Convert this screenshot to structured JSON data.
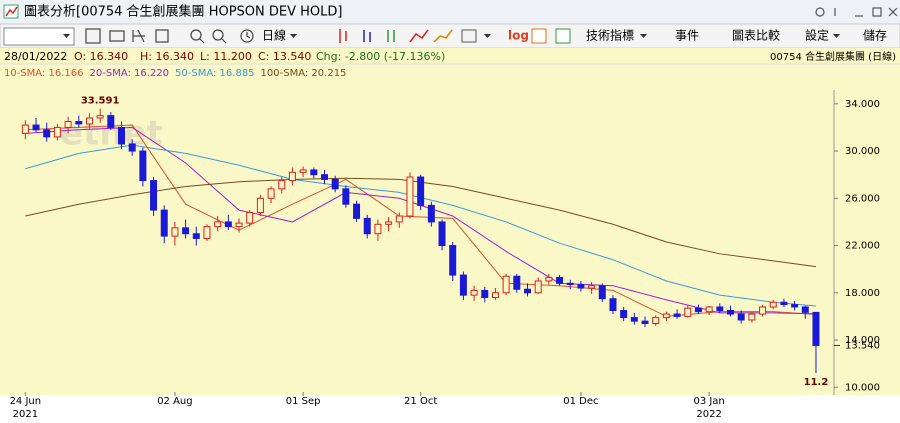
{
  "window_title": "圖表分析[00754 合生創展集團 HOPSON DEV HOLD]",
  "toolbar": {
    "period": "日線",
    "log": "log",
    "indicators": "技術指標",
    "events": "事件",
    "compare": "圖表比較",
    "settings": "設定",
    "save": "儲存"
  },
  "info": {
    "date": "28/01/2022",
    "open": "O: 16.340",
    "high": "H: 16.340",
    "low": "L: 11.200",
    "close": "C: 13.540",
    "change": "Chg: -2.800 (-17.136%)",
    "symbol": "00754 合生創展集團 (日線)"
  },
  "chart_data": {
    "type": "candlestick",
    "watermark": "etnet",
    "open": [
      31.5,
      32.2,
      31.8,
      31.2,
      32.0,
      32.5,
      32.3,
      32.8,
      33.0,
      32.0,
      30.6,
      30.0,
      27.5,
      25.0,
      22.8,
      23.5,
      23.0,
      22.6,
      23.6,
      24.0,
      23.6,
      23.9,
      24.8,
      26.0,
      26.8,
      27.5,
      28.2,
      28.4,
      28.0,
      27.6,
      26.8,
      25.5,
      24.3,
      23.0,
      23.8,
      24.0,
      24.5,
      27.8,
      25.4,
      24.0,
      22.0,
      19.5,
      17.8,
      18.2,
      17.6,
      18.0,
      19.4,
      18.3,
      18.0,
      19.0,
      19.3,
      18.8,
      18.7,
      18.4,
      18.6,
      17.5,
      16.5,
      15.9,
      15.6,
      15.4,
      15.9,
      16.2,
      16.0,
      16.7,
      16.4,
      16.8,
      16.5,
      16.2,
      15.7,
      16.2,
      16.8,
      17.2,
      17.0,
      16.8,
      16.34
    ],
    "high": [
      32.6,
      32.8,
      32.4,
      32.3,
      32.9,
      33.0,
      33.2,
      33.591,
      33.3,
      32.5,
      31.0,
      30.3,
      27.8,
      25.4,
      24.0,
      24.2,
      23.6,
      23.8,
      24.5,
      24.6,
      24.3,
      25.0,
      26.3,
      27.0,
      27.8,
      28.6,
      28.7,
      28.6,
      28.4,
      27.9,
      27.1,
      25.8,
      24.6,
      24.2,
      24.4,
      24.8,
      28.2,
      28.0,
      25.7,
      24.2,
      22.3,
      19.8,
      18.6,
      18.5,
      18.4,
      19.6,
      19.6,
      18.8,
      19.3,
      19.6,
      19.5,
      19.1,
      19.0,
      18.9,
      18.8,
      17.8,
      16.8,
      16.3,
      16.0,
      16.1,
      16.4,
      16.6,
      16.9,
      17.0,
      16.9,
      17.1,
      16.9,
      16.5,
      16.4,
      17.0,
      17.4,
      17.5,
      17.3,
      16.9,
      16.34
    ],
    "low": [
      31.0,
      31.6,
      30.8,
      30.9,
      31.5,
      32.0,
      31.9,
      32.4,
      31.8,
      30.2,
      29.6,
      27.0,
      24.5,
      22.2,
      22.0,
      22.6,
      22.0,
      22.4,
      23.2,
      23.3,
      23.1,
      23.6,
      24.5,
      25.6,
      26.4,
      27.1,
      27.8,
      27.7,
      27.2,
      26.5,
      25.2,
      24.0,
      22.6,
      22.4,
      23.2,
      23.5,
      24.3,
      25.0,
      23.6,
      21.6,
      19.0,
      17.4,
      17.3,
      17.2,
      17.4,
      17.8,
      18.0,
      17.7,
      17.9,
      18.7,
      18.6,
      18.3,
      18.1,
      17.9,
      17.2,
      16.2,
      15.6,
      15.3,
      15.1,
      15.2,
      15.6,
      15.8,
      15.9,
      16.2,
      16.1,
      16.3,
      16.0,
      15.4,
      15.5,
      16.0,
      16.6,
      16.8,
      16.5,
      15.8,
      11.2
    ],
    "close": [
      32.2,
      31.8,
      31.2,
      32.0,
      32.5,
      32.3,
      32.8,
      33.0,
      32.0,
      30.6,
      30.0,
      27.5,
      25.0,
      22.8,
      23.5,
      23.0,
      22.6,
      23.6,
      24.0,
      23.6,
      23.9,
      24.8,
      26.0,
      26.8,
      27.5,
      28.2,
      28.4,
      28.0,
      27.6,
      26.8,
      25.5,
      24.3,
      23.0,
      23.8,
      24.0,
      24.5,
      27.8,
      25.4,
      24.0,
      22.0,
      19.5,
      17.8,
      18.2,
      17.6,
      18.0,
      19.4,
      18.3,
      18.0,
      19.0,
      19.3,
      18.8,
      18.7,
      18.4,
      18.6,
      17.5,
      16.5,
      15.9,
      15.6,
      15.4,
      15.9,
      16.2,
      16.0,
      16.7,
      16.4,
      16.8,
      16.5,
      16.2,
      15.7,
      16.2,
      16.8,
      17.2,
      17.0,
      16.8,
      16.34,
      13.54
    ],
    "up_color": "#e0201c",
    "down_color": "#1a1ad6",
    "series": [
      {
        "name": "10-SMA: 16.166",
        "color": "#e05030",
        "x": [
          0,
          5,
          10,
          15,
          20,
          25,
          30,
          35,
          40,
          45,
          50,
          55,
          60,
          65,
          70,
          74
        ],
        "values": [
          31.8,
          32.0,
          32.2,
          25.5,
          23.3,
          25.5,
          27.6,
          24.5,
          24.3,
          18.8,
          18.6,
          18.2,
          16.0,
          16.4,
          16.4,
          16.166
        ]
      },
      {
        "name": "20-SMA: 16.220",
        "color": "#a020d0",
        "x": [
          0,
          5,
          10,
          15,
          20,
          25,
          30,
          35,
          40,
          45,
          50,
          55,
          60,
          65,
          70,
          74
        ],
        "values": [
          31.5,
          31.8,
          32.0,
          29.0,
          25.0,
          24.0,
          26.5,
          26.0,
          24.5,
          21.5,
          18.8,
          18.6,
          17.4,
          16.3,
          16.3,
          16.22
        ]
      },
      {
        "name": "50-SMA: 16.885",
        "color": "#3a9ae0",
        "x": [
          0,
          5,
          10,
          15,
          20,
          25,
          30,
          35,
          40,
          45,
          50,
          55,
          60,
          65,
          70,
          74
        ],
        "values": [
          28.5,
          29.8,
          30.5,
          29.8,
          28.8,
          27.6,
          27.0,
          26.5,
          25.4,
          24.0,
          22.2,
          20.8,
          19.0,
          17.8,
          17.2,
          16.885
        ]
      },
      {
        "name": "100-SMA: 20.215",
        "color": "#7a4a20",
        "x": [
          0,
          5,
          10,
          15,
          20,
          25,
          30,
          35,
          40,
          45,
          50,
          55,
          60,
          65,
          70,
          74
        ],
        "values": [
          24.5,
          25.5,
          26.3,
          27.0,
          27.4,
          27.6,
          27.7,
          27.6,
          27.0,
          26.0,
          25.0,
          23.8,
          22.3,
          21.3,
          20.7,
          20.215
        ]
      }
    ],
    "annotations": [
      {
        "x": 7,
        "y": 33.591,
        "label": "33.591"
      },
      {
        "x": 74,
        "y": 11.2,
        "label": "11.2"
      }
    ],
    "last_price": {
      "value": 13.54,
      "label": "13.540"
    },
    "xlim": [
      -0.5,
      75.5
    ],
    "ylim": [
      9.6,
      35.0
    ],
    "xticks": [
      {
        "value": 0,
        "label": "24 Jun"
      },
      {
        "value": 14,
        "label": "02 Aug"
      },
      {
        "value": 26,
        "label": "01 Sep"
      },
      {
        "value": 37,
        "label": "21 Oct"
      },
      {
        "value": 52,
        "label": "01 Dec"
      },
      {
        "value": 64,
        "label": "03 Jan"
      }
    ],
    "year_labels": [
      {
        "value": 0,
        "label": "2021"
      },
      {
        "value": 64,
        "label": "2022"
      }
    ],
    "yticks": [
      {
        "value": 10,
        "label": "10.000"
      },
      {
        "value": 14,
        "label": "14.000"
      },
      {
        "value": 18,
        "label": "18.000"
      },
      {
        "value": 22,
        "label": "22.000"
      },
      {
        "value": 26,
        "label": "26.000"
      },
      {
        "value": 30,
        "label": "30.000"
      },
      {
        "value": 34,
        "label": "34.000"
      }
    ]
  }
}
